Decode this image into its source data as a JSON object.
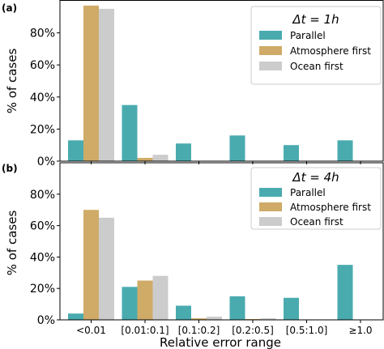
{
  "figure": {
    "xlabel": "Relative error range",
    "colors": {
      "Parallel": "#4aabaf",
      "Atmosphere first": "#cfab67",
      "Ocean first": "#cccccc"
    }
  },
  "chart_data": [
    {
      "type": "bar",
      "panel_label": "(a)",
      "legend_title": "Δt = 1h",
      "legend_placement": "top-right",
      "ylabel": "% of cases",
      "xlabel": "",
      "ylim": [
        0,
        100
      ],
      "yticks": [
        "0%",
        "20%",
        "40%",
        "60%",
        "80%"
      ],
      "categories": [
        "<0.01",
        "[0.01:0.1]",
        "[0.1:0.2]",
        "[0.2:0.5]",
        "[0.5:1.0]",
        "≥1.0"
      ],
      "series": [
        {
          "name": "Parallel",
          "values": [
            13,
            35,
            11,
            16,
            10,
            13
          ]
        },
        {
          "name": "Atmosphere first",
          "values": [
            97,
            2,
            0,
            0,
            0,
            0
          ]
        },
        {
          "name": "Ocean first",
          "values": [
            95,
            4,
            0,
            0,
            0,
            0
          ]
        }
      ]
    },
    {
      "type": "bar",
      "panel_label": "(b)",
      "legend_title": "Δt = 4h",
      "legend_placement": "top-right",
      "ylabel": "% of cases",
      "xlabel": "Relative error range",
      "ylim": [
        0,
        100
      ],
      "yticks": [
        "0%",
        "20%",
        "40%",
        "60%",
        "80%"
      ],
      "categories": [
        "<0.01",
        "[0.01:0.1]",
        "[0.1:0.2]",
        "[0.2:0.5]",
        "[0.5:1.0]",
        "≥1.0"
      ],
      "series": [
        {
          "name": "Parallel",
          "values": [
            4,
            21,
            9,
            15,
            14,
            35
          ]
        },
        {
          "name": "Atmosphere first",
          "values": [
            70,
            25,
            1,
            0.5,
            0,
            0
          ]
        },
        {
          "name": "Ocean first",
          "values": [
            65,
            28,
            2,
            1,
            0,
            0
          ]
        }
      ]
    }
  ]
}
